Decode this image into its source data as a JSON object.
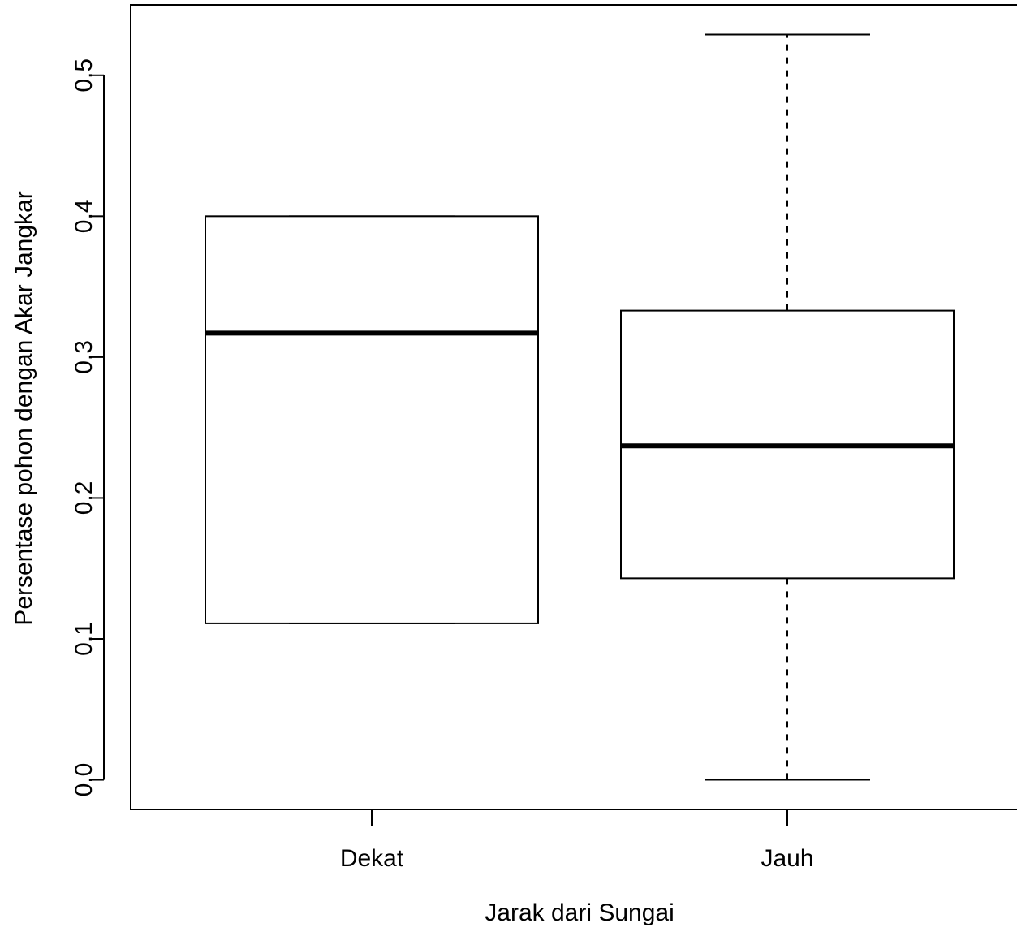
{
  "chart_data": {
    "type": "boxplot",
    "title": "",
    "xlabel": "Jarak dari Sungai",
    "ylabel": "Persentase pohon dengan Akar Jangkar",
    "ylim": [
      -0.021,
      0.55
    ],
    "y_ticks": [
      0.0,
      0.1,
      0.2,
      0.3,
      0.4,
      0.5
    ],
    "y_tick_labels": [
      "0.0",
      "0.1",
      "0.2",
      "0.3",
      "0.4",
      "0.5"
    ],
    "categories": [
      "Dekat",
      "Jauh"
    ],
    "boxes": [
      {
        "category": "Dekat",
        "whisker_low": 0.111,
        "q1": 0.111,
        "median": 0.317,
        "q3": 0.4,
        "whisker_high": 0.4
      },
      {
        "category": "Jauh",
        "whisker_low": 0.0,
        "q1": 0.143,
        "median": 0.237,
        "q3": 0.333,
        "whisker_high": 0.529
      }
    ],
    "grid": false
  }
}
